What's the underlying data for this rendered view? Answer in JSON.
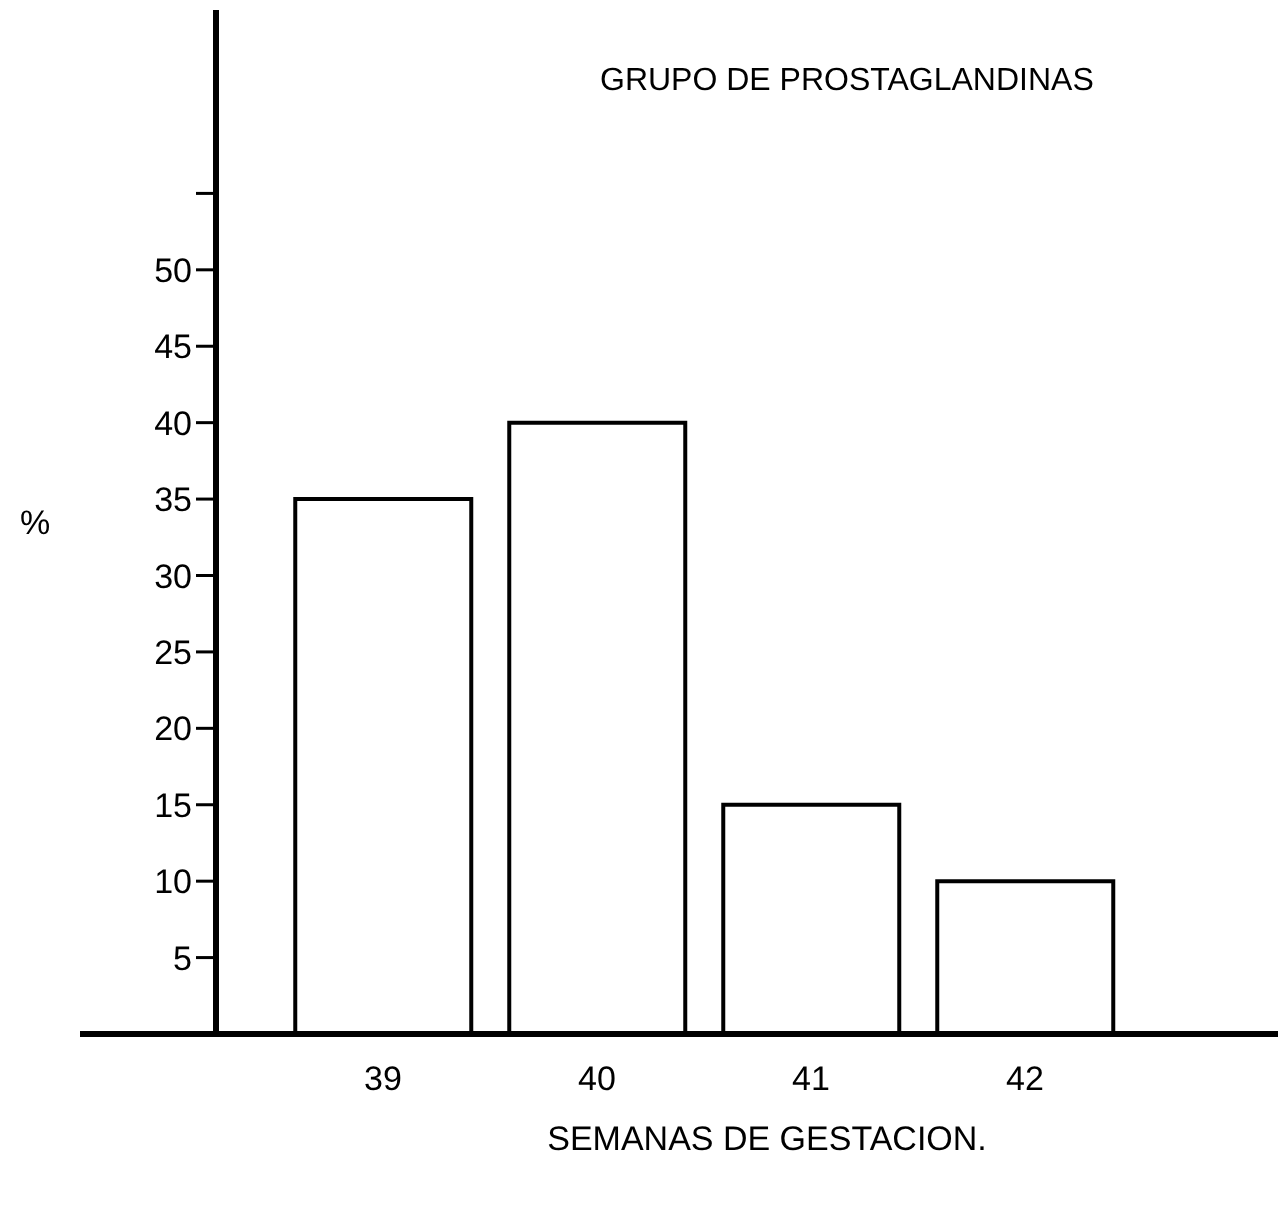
{
  "chart_data": {
    "type": "bar",
    "title": "GRUPO DE PROSTAGLANDINAS",
    "xlabel": "SEMANAS DE GESTACION.",
    "ylabel": "%",
    "categories": [
      "39",
      "40",
      "41",
      "42"
    ],
    "values": [
      35,
      40,
      15,
      10
    ],
    "color": "#ffffff",
    "ylim": [
      0,
      67
    ],
    "yticks": [
      5,
      10,
      15,
      20,
      25,
      30,
      35,
      40,
      45,
      50,
      {
        "value": 55,
        "label": null
      }
    ],
    "grid": false
  }
}
